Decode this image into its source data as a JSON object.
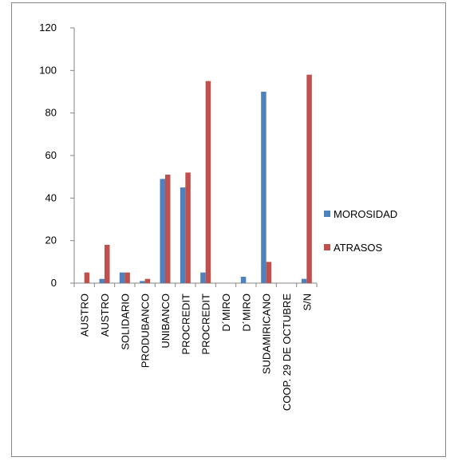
{
  "chart_data": {
    "type": "bar",
    "categories": [
      "AUSTRO",
      "AUSTRO",
      "SOLIDARIO",
      "PRODUBANCO",
      "UNIBANCO",
      "PROCREDIT",
      "PROCREDIT",
      "D´MIRO",
      "D´MIRO",
      "SUDAMIRICANO",
      "COOP. 29 DE OCTUBRE",
      "S/N"
    ],
    "series": [
      {
        "name": "MOROSIDAD",
        "color": "#4f81bd",
        "values": [
          0,
          2,
          5,
          1,
          49,
          45,
          5,
          0,
          3,
          90,
          0,
          2
        ]
      },
      {
        "name": "ATRASOS",
        "color": "#c0504d",
        "values": [
          5,
          18,
          5,
          2,
          51,
          52,
          95,
          0,
          0,
          10,
          0,
          98
        ]
      }
    ],
    "ylim": [
      0,
      120
    ],
    "yticks": [
      "0",
      "20",
      "40",
      "60",
      "80",
      "100",
      "120"
    ],
    "grid": false,
    "legend_position": "right"
  }
}
